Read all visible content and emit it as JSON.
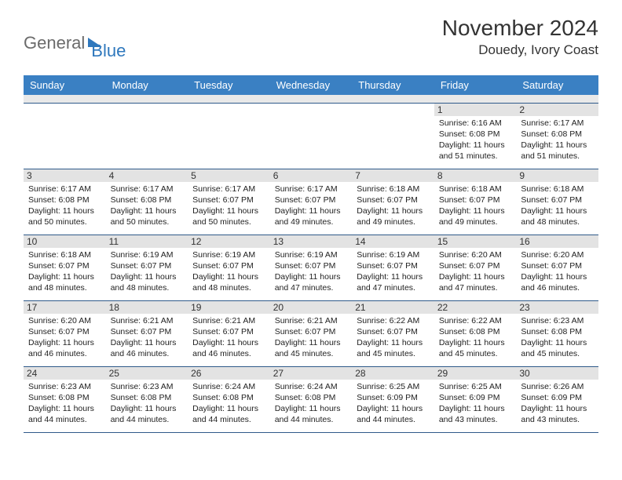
{
  "brand": {
    "part1": "General",
    "part2": "Blue"
  },
  "title": "November 2024",
  "location": "Douedy, Ivory Coast",
  "colors": {
    "header_bg": "#3a80c3",
    "brand_gray": "#6b6b6b",
    "brand_blue": "#2f78bd",
    "cell_border": "#2f5a8a",
    "daynum_bg": "#e3e3e3",
    "spacer_bg": "#e9e9e9"
  },
  "weekdays": [
    "Sunday",
    "Monday",
    "Tuesday",
    "Wednesday",
    "Thursday",
    "Friday",
    "Saturday"
  ],
  "weeks": [
    [
      {
        "n": "",
        "sr": "",
        "ss": "",
        "dl": ""
      },
      {
        "n": "",
        "sr": "",
        "ss": "",
        "dl": ""
      },
      {
        "n": "",
        "sr": "",
        "ss": "",
        "dl": ""
      },
      {
        "n": "",
        "sr": "",
        "ss": "",
        "dl": ""
      },
      {
        "n": "",
        "sr": "",
        "ss": "",
        "dl": ""
      },
      {
        "n": "1",
        "sr": "Sunrise: 6:16 AM",
        "ss": "Sunset: 6:08 PM",
        "dl": "Daylight: 11 hours and 51 minutes."
      },
      {
        "n": "2",
        "sr": "Sunrise: 6:17 AM",
        "ss": "Sunset: 6:08 PM",
        "dl": "Daylight: 11 hours and 51 minutes."
      }
    ],
    [
      {
        "n": "3",
        "sr": "Sunrise: 6:17 AM",
        "ss": "Sunset: 6:08 PM",
        "dl": "Daylight: 11 hours and 50 minutes."
      },
      {
        "n": "4",
        "sr": "Sunrise: 6:17 AM",
        "ss": "Sunset: 6:08 PM",
        "dl": "Daylight: 11 hours and 50 minutes."
      },
      {
        "n": "5",
        "sr": "Sunrise: 6:17 AM",
        "ss": "Sunset: 6:07 PM",
        "dl": "Daylight: 11 hours and 50 minutes."
      },
      {
        "n": "6",
        "sr": "Sunrise: 6:17 AM",
        "ss": "Sunset: 6:07 PM",
        "dl": "Daylight: 11 hours and 49 minutes."
      },
      {
        "n": "7",
        "sr": "Sunrise: 6:18 AM",
        "ss": "Sunset: 6:07 PM",
        "dl": "Daylight: 11 hours and 49 minutes."
      },
      {
        "n": "8",
        "sr": "Sunrise: 6:18 AM",
        "ss": "Sunset: 6:07 PM",
        "dl": "Daylight: 11 hours and 49 minutes."
      },
      {
        "n": "9",
        "sr": "Sunrise: 6:18 AM",
        "ss": "Sunset: 6:07 PM",
        "dl": "Daylight: 11 hours and 48 minutes."
      }
    ],
    [
      {
        "n": "10",
        "sr": "Sunrise: 6:18 AM",
        "ss": "Sunset: 6:07 PM",
        "dl": "Daylight: 11 hours and 48 minutes."
      },
      {
        "n": "11",
        "sr": "Sunrise: 6:19 AM",
        "ss": "Sunset: 6:07 PM",
        "dl": "Daylight: 11 hours and 48 minutes."
      },
      {
        "n": "12",
        "sr": "Sunrise: 6:19 AM",
        "ss": "Sunset: 6:07 PM",
        "dl": "Daylight: 11 hours and 48 minutes."
      },
      {
        "n": "13",
        "sr": "Sunrise: 6:19 AM",
        "ss": "Sunset: 6:07 PM",
        "dl": "Daylight: 11 hours and 47 minutes."
      },
      {
        "n": "14",
        "sr": "Sunrise: 6:19 AM",
        "ss": "Sunset: 6:07 PM",
        "dl": "Daylight: 11 hours and 47 minutes."
      },
      {
        "n": "15",
        "sr": "Sunrise: 6:20 AM",
        "ss": "Sunset: 6:07 PM",
        "dl": "Daylight: 11 hours and 47 minutes."
      },
      {
        "n": "16",
        "sr": "Sunrise: 6:20 AM",
        "ss": "Sunset: 6:07 PM",
        "dl": "Daylight: 11 hours and 46 minutes."
      }
    ],
    [
      {
        "n": "17",
        "sr": "Sunrise: 6:20 AM",
        "ss": "Sunset: 6:07 PM",
        "dl": "Daylight: 11 hours and 46 minutes."
      },
      {
        "n": "18",
        "sr": "Sunrise: 6:21 AM",
        "ss": "Sunset: 6:07 PM",
        "dl": "Daylight: 11 hours and 46 minutes."
      },
      {
        "n": "19",
        "sr": "Sunrise: 6:21 AM",
        "ss": "Sunset: 6:07 PM",
        "dl": "Daylight: 11 hours and 46 minutes."
      },
      {
        "n": "20",
        "sr": "Sunrise: 6:21 AM",
        "ss": "Sunset: 6:07 PM",
        "dl": "Daylight: 11 hours and 45 minutes."
      },
      {
        "n": "21",
        "sr": "Sunrise: 6:22 AM",
        "ss": "Sunset: 6:07 PM",
        "dl": "Daylight: 11 hours and 45 minutes."
      },
      {
        "n": "22",
        "sr": "Sunrise: 6:22 AM",
        "ss": "Sunset: 6:08 PM",
        "dl": "Daylight: 11 hours and 45 minutes."
      },
      {
        "n": "23",
        "sr": "Sunrise: 6:23 AM",
        "ss": "Sunset: 6:08 PM",
        "dl": "Daylight: 11 hours and 45 minutes."
      }
    ],
    [
      {
        "n": "24",
        "sr": "Sunrise: 6:23 AM",
        "ss": "Sunset: 6:08 PM",
        "dl": "Daylight: 11 hours and 44 minutes."
      },
      {
        "n": "25",
        "sr": "Sunrise: 6:23 AM",
        "ss": "Sunset: 6:08 PM",
        "dl": "Daylight: 11 hours and 44 minutes."
      },
      {
        "n": "26",
        "sr": "Sunrise: 6:24 AM",
        "ss": "Sunset: 6:08 PM",
        "dl": "Daylight: 11 hours and 44 minutes."
      },
      {
        "n": "27",
        "sr": "Sunrise: 6:24 AM",
        "ss": "Sunset: 6:08 PM",
        "dl": "Daylight: 11 hours and 44 minutes."
      },
      {
        "n": "28",
        "sr": "Sunrise: 6:25 AM",
        "ss": "Sunset: 6:09 PM",
        "dl": "Daylight: 11 hours and 44 minutes."
      },
      {
        "n": "29",
        "sr": "Sunrise: 6:25 AM",
        "ss": "Sunset: 6:09 PM",
        "dl": "Daylight: 11 hours and 43 minutes."
      },
      {
        "n": "30",
        "sr": "Sunrise: 6:26 AM",
        "ss": "Sunset: 6:09 PM",
        "dl": "Daylight: 11 hours and 43 minutes."
      }
    ]
  ]
}
